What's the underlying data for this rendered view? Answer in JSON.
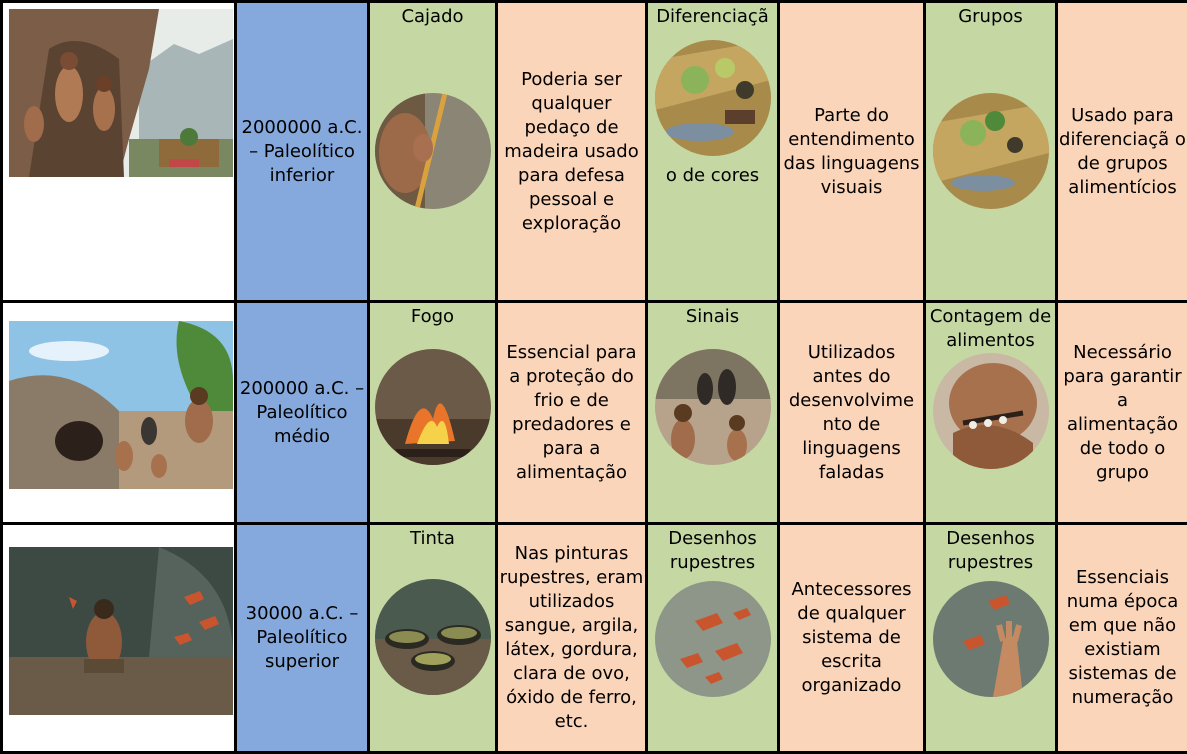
{
  "rows": [
    {
      "image": "scene-cave-hunters-icon",
      "era": "2000000 a.C. – Paleolítico inferior",
      "col1_title": "Cajado",
      "col1_icon": "staff-holder-icon",
      "col1_text": "Poderia ser qualquer pedaço de madeira usado para defesa pessoal e exploração",
      "col2_title": "Diferenciaçã o de cores",
      "col2_title_top": "Diferenciaçã",
      "col2_title_bottom": "o de cores",
      "col2_icon": "food-mat-icon",
      "col2_text": "Parte do entendimento das linguagens visuais",
      "col3_title": "Grupos",
      "col3_icon": "food-groups-icon",
      "col3_text": "Usado para diferenciaçã o de grupos alimentícios"
    },
    {
      "image": "scene-village-icon",
      "era": "200000 a.C. – Paleolítico médio",
      "col1_title": "Fogo",
      "col1_icon": "fire-icon",
      "col1_text": "Essencial para a proteção do frio e de predadores e para a alimentação",
      "col2_title": "Sinais",
      "col2_icon": "people-signals-icon",
      "col2_text": "Utilizados antes do desenvolvime nto de linguagens faladas",
      "col3_title": "Contagem de alimentos",
      "col3_icon": "counting-hand-icon",
      "col3_text": "Necessário para garantir a alimentação de todo o grupo"
    },
    {
      "image": "scene-cave-painter-icon",
      "era": "30000 a.C. – Paleolítico superior",
      "col1_title": "Tinta",
      "col1_icon": "paint-bowls-icon",
      "col1_text": "Nas pinturas rupestres, eram utilizados sangue, argila, látex, gordura, clara de ovo, óxido de ferro, etc.",
      "col2_title": "Desenhos rupestres",
      "col2_icon": "rock-art-icon",
      "col2_text": "Antecessores de qualquer sistema de escrita organizado",
      "col3_title": "Desenhos rupestres",
      "col3_icon": "rock-art-hand-icon",
      "col3_text": "Essenciais numa época em que não existiam sistemas de numeração"
    }
  ]
}
